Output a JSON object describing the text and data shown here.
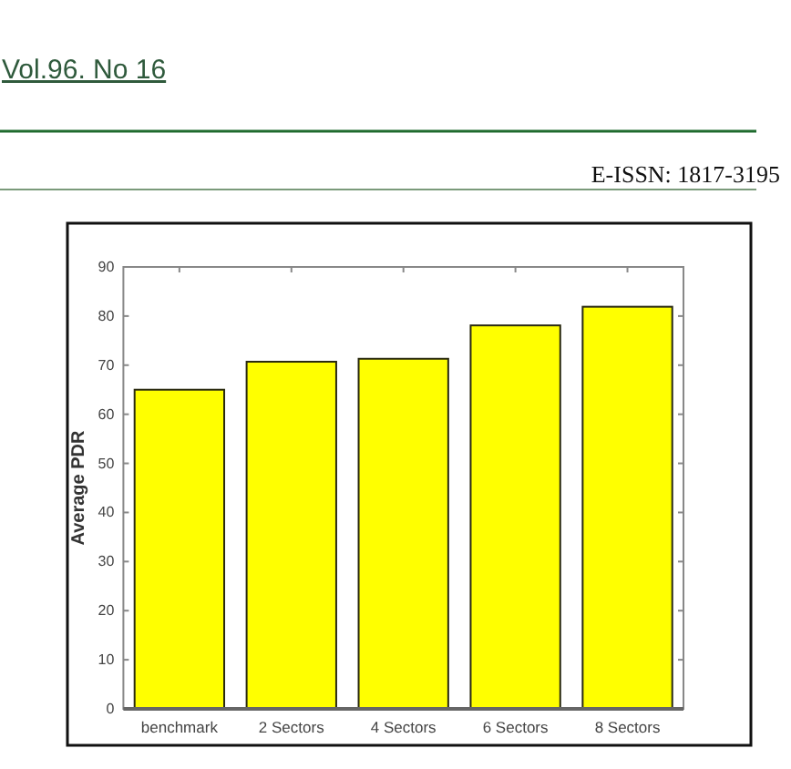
{
  "chart_data": {
    "type": "bar",
    "ylabel": "Average PDR",
    "categories": [
      "benchmark",
      "2 Sectors",
      "4 Sectors",
      "6 Sectors",
      "8 Sectors"
    ],
    "values": [
      65,
      70.7,
      71.3,
      78.1,
      81.9
    ],
    "color": "#ffff00",
    "ylim": [
      0,
      90
    ],
    "yticks": [
      0,
      10,
      20,
      30,
      40,
      50,
      60,
      70,
      80,
      90
    ],
    "annotations": [
      "Vol.96. No 16",
      "E-ISSN: 1817-3195"
    ]
  }
}
